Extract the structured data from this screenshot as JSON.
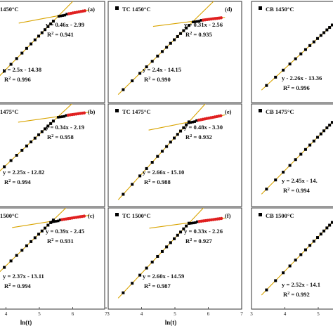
{
  "figure": {
    "xlabel": "ln(t)"
  },
  "chart_data": [
    {
      "type": "scatter",
      "panel": "a",
      "col": 0,
      "row": 0,
      "label": "(a)",
      "title": "1450°C",
      "xlim": [
        3,
        7
      ],
      "fits": [
        {
          "eq": "y = 0.46x - 2.99",
          "r2_text": "R",
          "r2_val": "= 0.941",
          "m": 0.46,
          "b": -2.99
        },
        {
          "eq": "y = 2.5x - 14.38",
          "r2_text": "R",
          "r2_val": "= 0.996",
          "m": 2.5,
          "b": -14.38
        }
      ]
    },
    {
      "type": "scatter",
      "panel": "d",
      "col": 1,
      "row": 0,
      "label": "(d)",
      "title": "TC 1450°C",
      "xlim": [
        3,
        7
      ],
      "fits": [
        {
          "eq": "y = 0.31x - 2.56",
          "r2_text": "R",
          "r2_val": "= 0.935",
          "m": 0.31,
          "b": -2.56
        },
        {
          "eq": "y = 2.4x - 14.15",
          "r2_text": "R",
          "r2_val": "= 0.990",
          "m": 2.4,
          "b": -14.15
        }
      ]
    },
    {
      "type": "scatter",
      "panel": "g",
      "col": 2,
      "row": 0,
      "label": "",
      "title": "CB 1450°C",
      "xlim": [
        3,
        7
      ],
      "fits": [
        {
          "eq": "y - 2.26x - 13.36",
          "r2_text": "R",
          "r2_val": "= 0.996",
          "m": 2.26,
          "b": -13.36
        }
      ]
    },
    {
      "type": "scatter",
      "panel": "b",
      "col": 0,
      "row": 1,
      "label": "(b)",
      "title": "1475°C",
      "xlim": [
        3,
        7
      ],
      "fits": [
        {
          "eq": "y = 0.34x - 2.19",
          "r2_text": "R",
          "r2_val": "= 0.958",
          "m": 0.34,
          "b": -2.19
        },
        {
          "eq": "y = 2.25x - 12.82",
          "r2_text": "R",
          "r2_val": "= 0.994",
          "m": 2.25,
          "b": -12.82
        }
      ]
    },
    {
      "type": "scatter",
      "panel": "e",
      "col": 1,
      "row": 1,
      "label": "(e)",
      "title": "TC 1475°C",
      "xlim": [
        3,
        7
      ],
      "fits": [
        {
          "eq": "y = 0.48x - 3.30",
          "r2_text": "R",
          "r2_val": "= 0.932",
          "m": 0.48,
          "b": -3.3
        },
        {
          "eq": "y = 2.66x - 15.10",
          "r2_text": "R",
          "r2_val": "= 0.988",
          "m": 2.66,
          "b": -15.1
        }
      ]
    },
    {
      "type": "scatter",
      "panel": "h",
      "col": 2,
      "row": 1,
      "label": "",
      "title": "CB 1475°C",
      "xlim": [
        3,
        7
      ],
      "fits": [
        {
          "eq": "y = 2.45x - 14.",
          "r2_text": "R",
          "r2_val": "= 0.994",
          "m": 2.45,
          "b": -14.0
        }
      ]
    },
    {
      "type": "scatter",
      "panel": "c",
      "col": 0,
      "row": 2,
      "label": "(c)",
      "title": "1500°C",
      "xlim": [
        3,
        7
      ],
      "fits": [
        {
          "eq": "y = 0.39x - 2.45",
          "r2_text": "R",
          "r2_val": "= 0.931",
          "m": 0.39,
          "b": -2.45
        },
        {
          "eq": "y = 2.37x - 13.11",
          "r2_text": "R",
          "r2_val": "= 0.994",
          "m": 2.37,
          "b": -13.11
        }
      ]
    },
    {
      "type": "scatter",
      "panel": "f",
      "col": 1,
      "row": 2,
      "label": "(f)",
      "title": "TC 1500°C",
      "xlim": [
        3,
        7
      ],
      "fits": [
        {
          "eq": "y = 0.33x - 2.26",
          "r2_text": "R",
          "r2_val": "= 0.927",
          "m": 0.33,
          "b": -2.26
        },
        {
          "eq": "y = 2.60x - 14.59",
          "r2_text": "R",
          "r2_val": "= 0.987",
          "m": 2.6,
          "b": -14.59
        }
      ]
    },
    {
      "type": "scatter",
      "panel": "i",
      "col": 2,
      "row": 2,
      "label": "",
      "title": "CB 1500°C",
      "xlim": [
        3,
        7
      ],
      "fits": [
        {
          "eq": "y = 2.52x - 14.1",
          "r2_text": "R",
          "r2_val": "= 0.992",
          "m": 2.52,
          "b": -14.1
        }
      ]
    }
  ],
  "ticks": {
    "left": [
      "4",
      "5",
      "6",
      "7"
    ],
    "mid": [
      "3",
      "4",
      "5",
      "6",
      "7"
    ],
    "right": [
      "3",
      "4",
      "5",
      "6",
      "7"
    ]
  }
}
